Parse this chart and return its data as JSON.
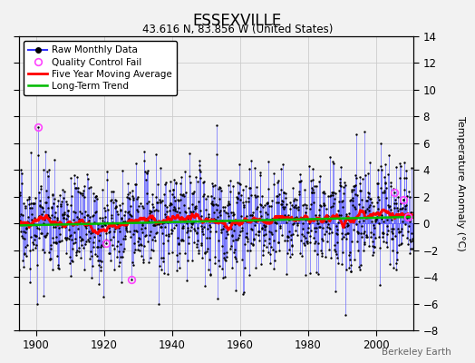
{
  "title": "ESSEXVILLE",
  "subtitle": "43.616 N, 83.856 W (United States)",
  "ylabel": "Temperature Anomaly (°C)",
  "xlabel_note": "Berkeley Earth",
  "ylim": [
    -8,
    14
  ],
  "yticks": [
    -8,
    -6,
    -4,
    -2,
    0,
    2,
    4,
    6,
    8,
    10,
    12,
    14
  ],
  "xlim": [
    1895,
    2011
  ],
  "xticks": [
    1900,
    1920,
    1940,
    1960,
    1980,
    2000
  ],
  "start_year": 1895,
  "end_year": 2010,
  "raw_color": "#3333ff",
  "stem_color": "#6666ff",
  "moving_avg_color": "#ff0000",
  "trend_color": "#00bb00",
  "qc_fail_color": "#ff44ff",
  "background_color": "#f2f2f2",
  "grid_color": "#cccccc",
  "seed": 17,
  "trend_slope": 0.0055,
  "trend_intercept": -0.15,
  "noise_std": 2.5
}
